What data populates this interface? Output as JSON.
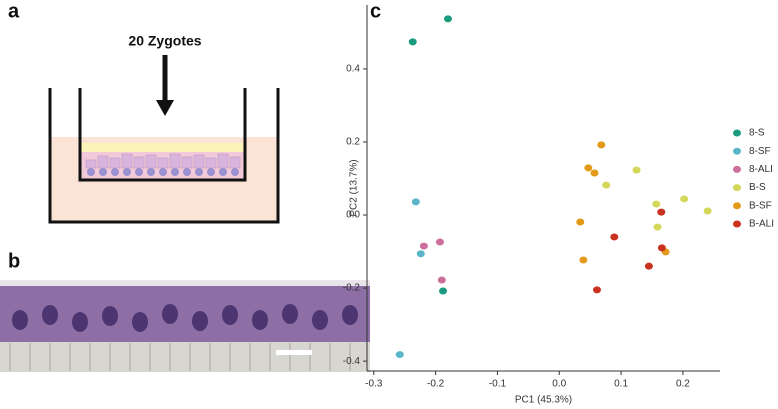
{
  "panels": {
    "a": {
      "label": "a",
      "text": "20 Zygotes"
    },
    "b": {
      "label": "b"
    },
    "c": {
      "label": "c"
    }
  },
  "chart_data": {
    "type": "scatter",
    "x_label": "PC1 (45.3%)",
    "y_label": "PC2 (13.7%)",
    "xlim": [
      -0.311,
      0.26
    ],
    "ylim": [
      -0.427,
      0.575
    ],
    "xticks": [
      -0.3,
      -0.2,
      -0.1,
      {
        "value": 0,
        "label": "0.0"
      },
      0.1,
      0.2
    ],
    "yticks": [
      -0.4,
      -0.2,
      {
        "value": 0,
        "label": "0.0"
      },
      0.2,
      0.4
    ],
    "legend": "right",
    "series": [
      {
        "name": "8-S",
        "color": "#1a9a7e",
        "x": [
          -0.18,
          -0.237,
          -0.188
        ],
        "values": [
          0.537,
          0.474,
          -0.208
        ]
      },
      {
        "name": "8-SF",
        "color": "#5bb5c8",
        "x": [
          -0.232,
          -0.224,
          -0.258
        ],
        "values": [
          0.036,
          -0.106,
          -0.382
        ]
      },
      {
        "name": "8-ALI",
        "color": "#cc6f9a",
        "x": [
          -0.219,
          -0.193,
          -0.19
        ],
        "values": [
          -0.085,
          -0.074,
          -0.178
        ]
      },
      {
        "name": "B-S",
        "color": "#d4d85a",
        "x": [
          0.125,
          0.076,
          0.157,
          0.202,
          0.24,
          0.159
        ],
        "values": [
          0.123,
          0.082,
          0.03,
          0.044,
          0.011,
          -0.033
        ]
      },
      {
        "name": "B-SF",
        "color": "#e39a1a",
        "x": [
          0.068,
          0.047,
          0.057,
          0.034,
          0.039,
          0.172
        ],
        "values": [
          0.192,
          0.129,
          0.115,
          -0.019,
          -0.123,
          -0.101
        ]
      },
      {
        "name": "B-ALI",
        "color": "#c8321e",
        "x": [
          0.165,
          0.089,
          0.166,
          0.145,
          0.061
        ],
        "values": [
          0.008,
          -0.06,
          -0.09,
          -0.14,
          -0.205
        ]
      }
    ]
  }
}
